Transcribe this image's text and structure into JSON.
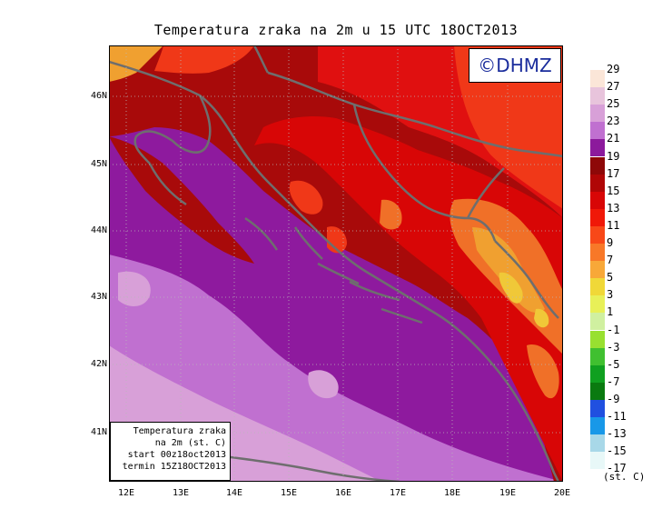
{
  "title": "Temperatura zraka na 2m u 15 UTC 18OCT2013",
  "logo": "©DHMZ",
  "info_box": {
    "line1": "Temperatura zraka",
    "line2": "na 2m (st. C)",
    "line3": "start 00z18oct2013",
    "line4": "termin 15Z18OCT2013"
  },
  "latitude_labels": [
    "46N",
    "45N",
    "44N",
    "43N",
    "42N",
    "41N"
  ],
  "longitude_labels": [
    "12E",
    "13E",
    "14E",
    "15E",
    "16E",
    "17E",
    "18E",
    "19E",
    "20E"
  ],
  "legend": {
    "unit": "(st. C)",
    "labels": [
      "29",
      "27",
      "25",
      "23",
      "21",
      "19",
      "17",
      "15",
      "13",
      "11",
      "9",
      "7",
      "5",
      "3",
      "1",
      "-1",
      "-3",
      "-5",
      "-7",
      "-9",
      "-11",
      "-13",
      "-15",
      "-17"
    ],
    "colors": [
      "#fbe6d8",
      "#e8c4dc",
      "#d8a0d8",
      "#c070d0",
      "#8c1a9c",
      "#8e0808",
      "#b00606",
      "#d80606",
      "#f01808",
      "#f84818",
      "#f87828",
      "#f8a838",
      "#f0d838",
      "#e8f058",
      "#d0f0a0",
      "#98e030",
      "#40c030",
      "#10a020",
      "#0a7a10",
      "#2050e0",
      "#1898e8",
      "#a8d8e8",
      "#e8f8f8"
    ]
  },
  "map_colors": {
    "sea": "#8e1a9e",
    "coast_inland": "#a80a0a",
    "inland_hot": "#e01010",
    "inland_warm": "#f03818",
    "mountains": "#f08030",
    "peaks": "#f0c838",
    "sea_light": "#c070d0",
    "sea_lighter": "#d8a0d8",
    "borders": "#6e6e6e"
  }
}
